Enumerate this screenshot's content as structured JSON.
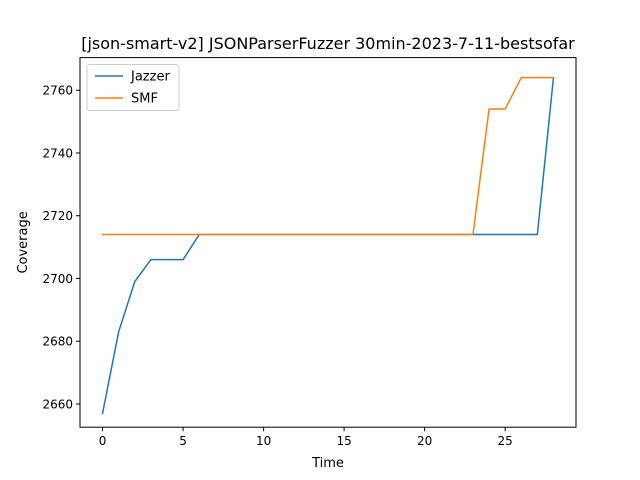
{
  "chart_data": {
    "type": "line",
    "title": "[json-smart-v2] JSONParserFuzzer 30min-2023-7-11-bestsofar",
    "xlabel": "Time",
    "ylabel": "Coverage",
    "xlim": [
      -1.4,
      29.4
    ],
    "ylim": [
      2652.6,
      2770.4
    ],
    "xticks": [
      0,
      5,
      10,
      15,
      20,
      25
    ],
    "yticks": [
      2660,
      2680,
      2700,
      2720,
      2740,
      2760
    ],
    "legend_position": "top-left",
    "grid": false,
    "series": [
      {
        "name": "Jazzer",
        "color": "#1f77b4",
        "x": [
          0,
          1,
          2,
          3,
          4,
          5,
          6,
          7,
          8,
          9,
          10,
          11,
          12,
          13,
          14,
          15,
          16,
          17,
          18,
          19,
          20,
          21,
          22,
          23,
          24,
          25,
          26,
          27,
          28
        ],
        "y": [
          2657,
          2683,
          2699,
          2706,
          2706,
          2706,
          2714,
          2714,
          2714,
          2714,
          2714,
          2714,
          2714,
          2714,
          2714,
          2714,
          2714,
          2714,
          2714,
          2714,
          2714,
          2714,
          2714,
          2714,
          2714,
          2714,
          2714,
          2714,
          2764
        ]
      },
      {
        "name": "SMF",
        "color": "#ff7f0e",
        "x": [
          0,
          1,
          2,
          3,
          4,
          5,
          6,
          7,
          8,
          9,
          10,
          11,
          12,
          13,
          14,
          15,
          16,
          17,
          18,
          19,
          20,
          21,
          22,
          23,
          24,
          25,
          26,
          27,
          28
        ],
        "y": [
          2714,
          2714,
          2714,
          2714,
          2714,
          2714,
          2714,
          2714,
          2714,
          2714,
          2714,
          2714,
          2714,
          2714,
          2714,
          2714,
          2714,
          2714,
          2714,
          2714,
          2714,
          2714,
          2714,
          2714,
          2754,
          2754,
          2764,
          2764,
          2764
        ]
      }
    ]
  }
}
